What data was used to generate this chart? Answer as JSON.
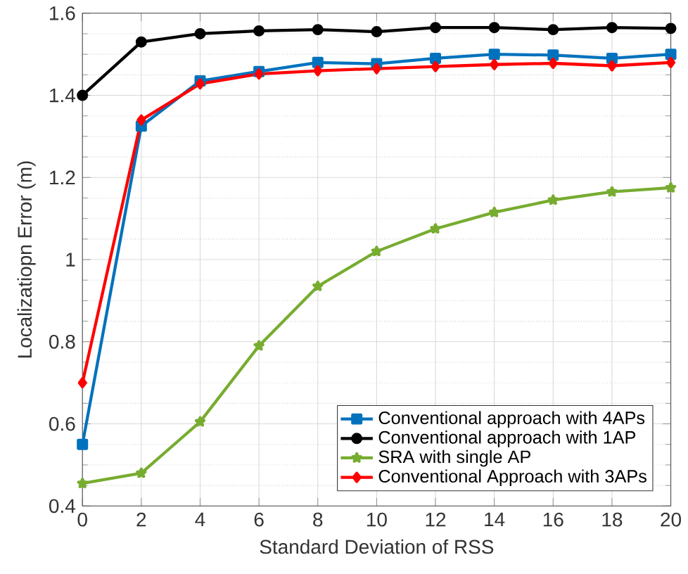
{
  "chart_data": {
    "type": "line",
    "xlabel": "Standard Deviation of RSS",
    "ylabel": "Localizatiopn Error (m)",
    "x": [
      0,
      2,
      4,
      6,
      8,
      10,
      12,
      14,
      16,
      18,
      20
    ],
    "series": [
      {
        "name": "Conventional approach with 4APs",
        "color": "#0072bd",
        "marker": "square",
        "values": [
          0.55,
          1.325,
          1.435,
          1.458,
          1.48,
          1.477,
          1.49,
          1.5,
          1.498,
          1.49,
          1.5
        ]
      },
      {
        "name": "Conventional approach with 1AP",
        "color": "#000000",
        "marker": "circle",
        "values": [
          1.4,
          1.53,
          1.55,
          1.557,
          1.56,
          1.555,
          1.565,
          1.565,
          1.56,
          1.565,
          1.563
        ]
      },
      {
        "name": "SRA with single AP",
        "color": "#77ac30",
        "marker": "star",
        "values": [
          0.455,
          0.48,
          0.605,
          0.79,
          0.935,
          1.02,
          1.075,
          1.115,
          1.145,
          1.165,
          1.175
        ]
      },
      {
        "name": "Conventional Approach with 3APs",
        "color": "#ff0000",
        "marker": "diamond",
        "values": [
          0.7,
          1.34,
          1.428,
          1.452,
          1.46,
          1.465,
          1.47,
          1.475,
          1.478,
          1.472,
          1.48
        ]
      }
    ],
    "xlim": [
      0,
      20
    ],
    "xticks": [
      0,
      2,
      4,
      6,
      8,
      10,
      12,
      14,
      16,
      18,
      20
    ],
    "ylim": [
      0.4,
      1.6
    ],
    "yticks": [
      0.4,
      0.6,
      0.8,
      1,
      1.2,
      1.4,
      1.6
    ],
    "grid": true,
    "legend": "bottom right",
    "line_style": "solid"
  }
}
